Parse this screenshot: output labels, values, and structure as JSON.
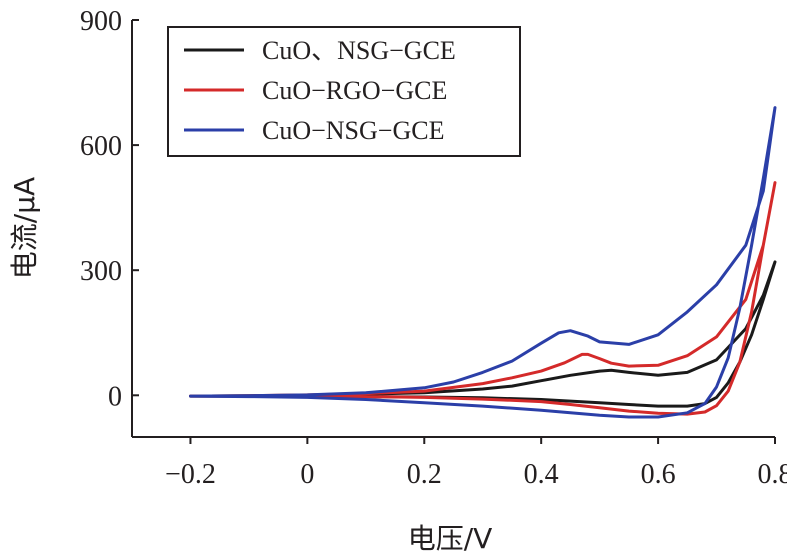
{
  "chart_data": {
    "type": "line",
    "xlabel": "电压/V",
    "ylabel": "电流/μA",
    "xlim": [
      -0.3,
      0.8
    ],
    "ylim": [
      -100,
      900
    ],
    "xticks": [
      -0.2,
      0,
      0.2,
      0.4,
      0.6,
      0.8
    ],
    "xtick_labels": [
      "−0.2",
      "0",
      "0.2",
      "0.4",
      "0.6",
      "0.8"
    ],
    "yticks": [
      0,
      300,
      600,
      900
    ],
    "ytick_labels": [
      "0",
      "300",
      "600",
      "900"
    ],
    "grid": false,
    "legend_position": "top-left",
    "series": [
      {
        "name": "CuO、NSG−GCE",
        "color": "#1a1a1a",
        "x": [
          -0.2,
          -0.1,
          0.0,
          0.1,
          0.2,
          0.3,
          0.35,
          0.4,
          0.45,
          0.5,
          0.52,
          0.55,
          0.6,
          0.65,
          0.7,
          0.75,
          0.78,
          0.8,
          0.8,
          0.78,
          0.76,
          0.74,
          0.72,
          0.7,
          0.68,
          0.65,
          0.6,
          0.55,
          0.5,
          0.45,
          0.4,
          0.3,
          0.2,
          0.1,
          0.0,
          -0.1,
          -0.2
        ],
        "y": [
          -2,
          -1,
          0,
          3,
          6,
          15,
          22,
          35,
          48,
          58,
          60,
          55,
          48,
          55,
          85,
          160,
          240,
          320,
          320,
          230,
          145,
          80,
          30,
          -5,
          -20,
          -26,
          -26,
          -22,
          -18,
          -14,
          -10,
          -6,
          -4,
          -3,
          -2,
          -2,
          -2
        ]
      },
      {
        "name": "CuO−RGO−GCE",
        "color": "#d42a2a",
        "x": [
          -0.2,
          -0.1,
          0.0,
          0.1,
          0.2,
          0.3,
          0.35,
          0.4,
          0.44,
          0.47,
          0.48,
          0.5,
          0.52,
          0.55,
          0.6,
          0.65,
          0.7,
          0.75,
          0.78,
          0.8,
          0.8,
          0.78,
          0.76,
          0.74,
          0.72,
          0.7,
          0.68,
          0.65,
          0.6,
          0.55,
          0.5,
          0.45,
          0.4,
          0.3,
          0.2,
          0.1,
          0.0,
          -0.1,
          -0.2
        ],
        "y": [
          -2,
          -1,
          1,
          4,
          10,
          28,
          42,
          58,
          78,
          98,
          98,
          88,
          77,
          70,
          72,
          95,
          140,
          230,
          360,
          510,
          510,
          360,
          200,
          80,
          10,
          -25,
          -40,
          -45,
          -43,
          -38,
          -30,
          -22,
          -15,
          -9,
          -5,
          -3,
          -2,
          -2,
          -2
        ]
      },
      {
        "name": "CuO−NSG−GCE",
        "color": "#2b3fa8",
        "x": [
          -0.2,
          -0.1,
          0.0,
          0.1,
          0.2,
          0.25,
          0.3,
          0.35,
          0.4,
          0.43,
          0.45,
          0.48,
          0.5,
          0.55,
          0.6,
          0.65,
          0.7,
          0.75,
          0.78,
          0.8,
          0.8,
          0.78,
          0.76,
          0.74,
          0.72,
          0.7,
          0.68,
          0.65,
          0.6,
          0.55,
          0.5,
          0.45,
          0.4,
          0.3,
          0.2,
          0.1,
          0.0,
          -0.1,
          -0.2
        ],
        "y": [
          -2,
          -1,
          1,
          6,
          18,
          32,
          55,
          82,
          125,
          150,
          155,
          142,
          128,
          122,
          145,
          200,
          265,
          360,
          490,
          690,
          690,
          520,
          360,
          210,
          90,
          20,
          -20,
          -42,
          -52,
          -52,
          -48,
          -42,
          -36,
          -26,
          -18,
          -10,
          -5,
          -3,
          -2
        ]
      }
    ]
  }
}
